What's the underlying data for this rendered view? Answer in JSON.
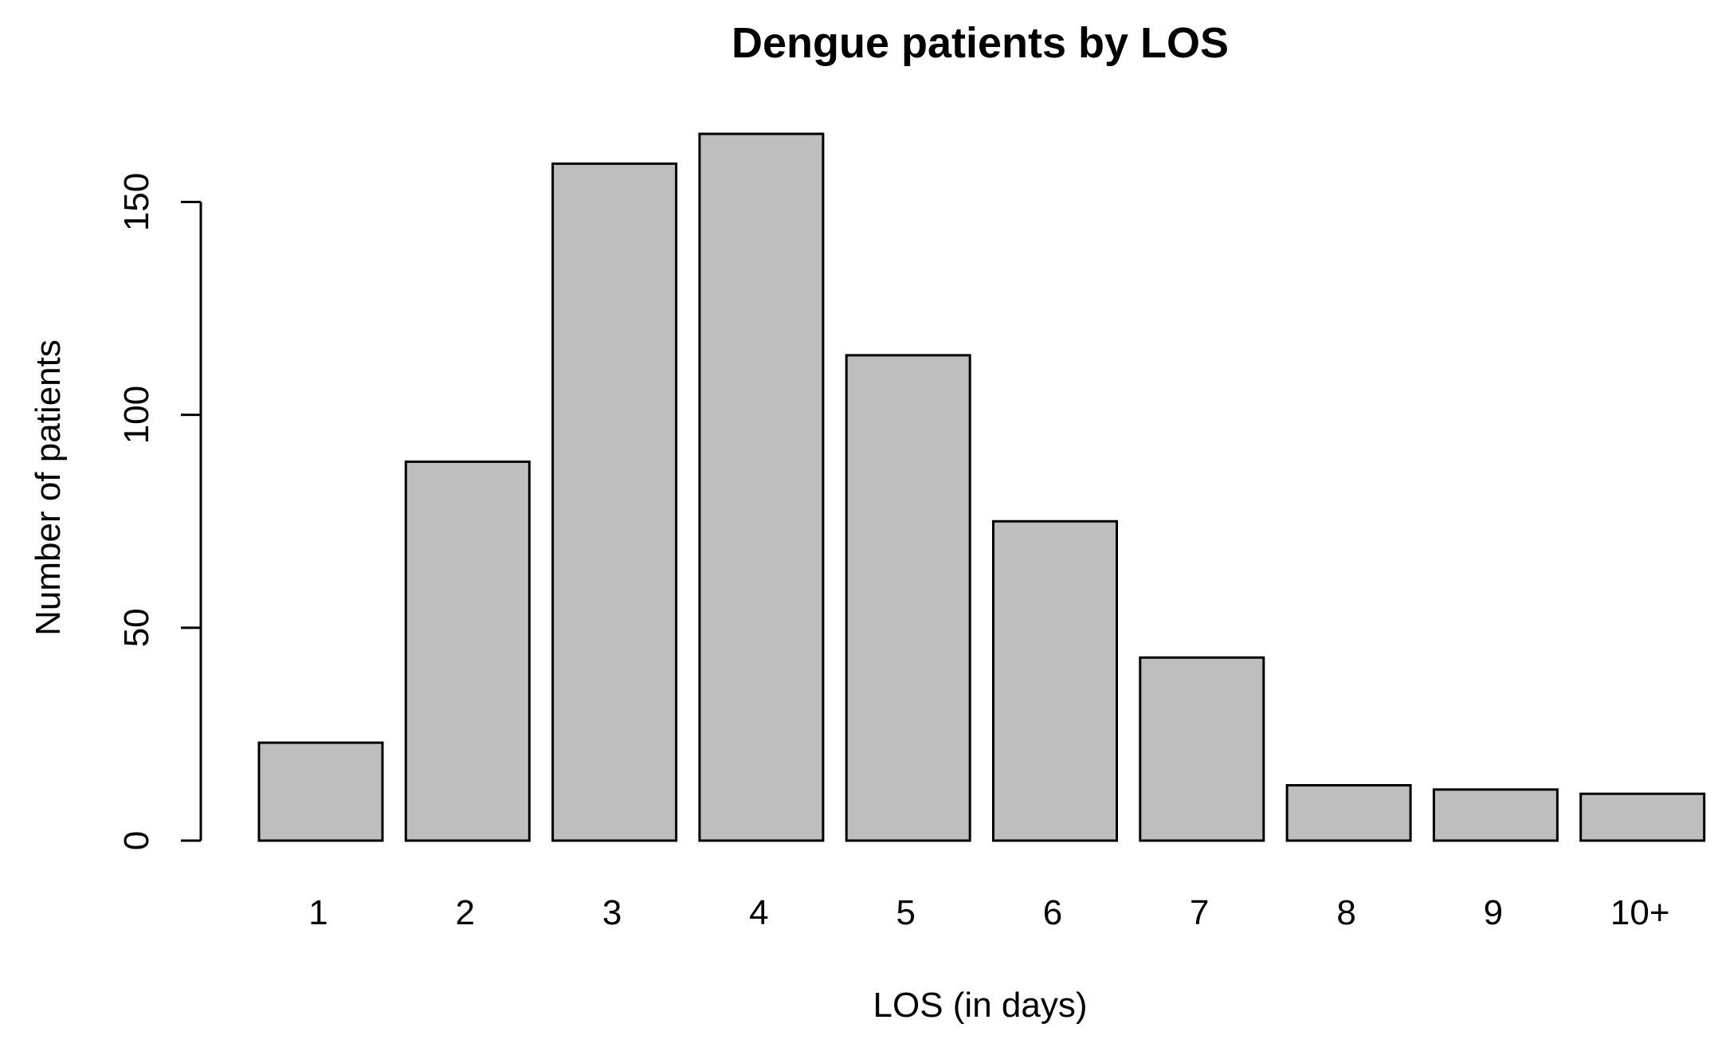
{
  "chart_data": {
    "type": "bar",
    "title": "Dengue patients by LOS",
    "xlabel": "LOS (in days)",
    "ylabel": "Number of patients",
    "categories": [
      "1",
      "2",
      "3",
      "4",
      "5",
      "6",
      "7",
      "8",
      "9",
      "10+"
    ],
    "values": [
      23,
      89,
      159,
      166,
      114,
      75,
      43,
      13,
      12,
      11
    ],
    "ylim": [
      0,
      166
    ],
    "yticks": [
      0,
      50,
      100,
      150
    ],
    "ytick_labels": [
      "0",
      "50",
      "100",
      "150"
    ],
    "grid": false,
    "legend": "none",
    "bar_color": "#bebebe",
    "bar_border_color": "#000000"
  }
}
